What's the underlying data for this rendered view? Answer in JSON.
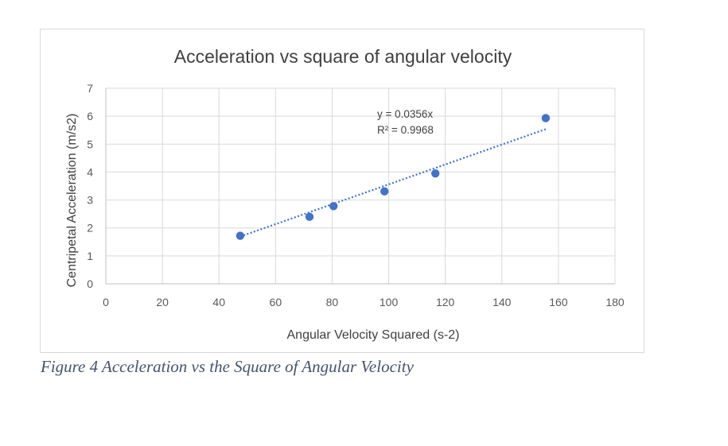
{
  "chart_data": {
    "type": "scatter",
    "title": "Acceleration vs square of angular velocity",
    "xlabel": "Angular Velocity Squared (s-2)",
    "ylabel": "Centripetal Acceleration (m/s2)",
    "xlim": [
      0,
      180
    ],
    "ylim": [
      0,
      7
    ],
    "x_ticks": [
      "0",
      "20",
      "40",
      "60",
      "80",
      "100",
      "120",
      "140",
      "160",
      "180"
    ],
    "y_ticks": [
      "0",
      "1",
      "2",
      "3",
      "4",
      "5",
      "6",
      "7"
    ],
    "grid": true,
    "series": [
      {
        "x": [
          47.5,
          72,
          80.5,
          98.5,
          116.5,
          155.5
        ],
        "y": [
          1.72,
          2.4,
          2.78,
          3.31,
          3.95,
          5.93
        ],
        "color": "#4472c4"
      }
    ],
    "trendline": {
      "type": "linear",
      "slope": 0.0356,
      "intercept": 0,
      "x_range": [
        47.5,
        155.5
      ],
      "style": "dotted",
      "color": "#4472c4",
      "equation": "y = 0.0356x",
      "r_squared": "R² = 0.9968"
    }
  },
  "caption": "Figure 4 Acceleration vs the Square of Angular Velocity"
}
